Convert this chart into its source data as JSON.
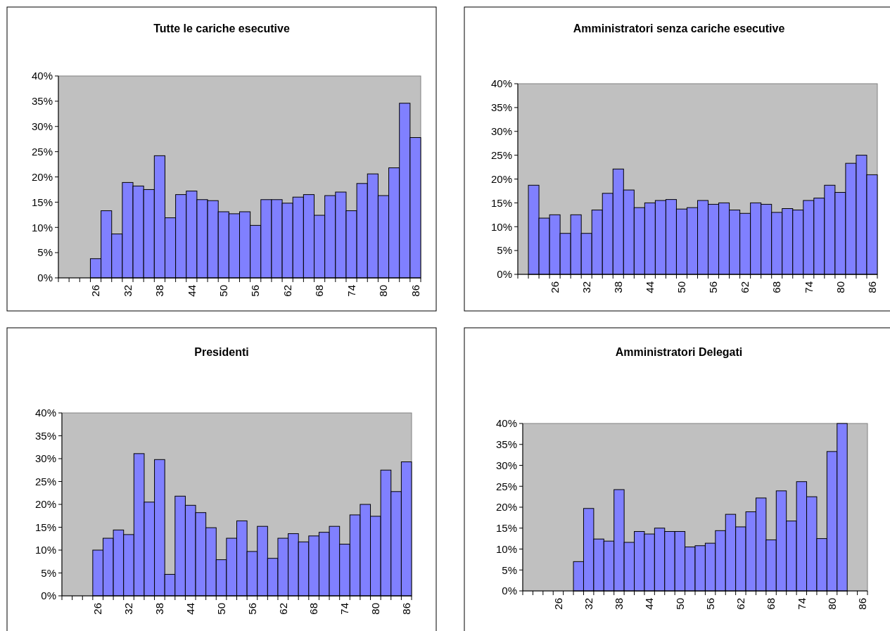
{
  "chart_data": [
    {
      "type": "bar",
      "title": "Tutte le cariche esecutive",
      "categories": [
        null,
        null,
        null,
        "26",
        null,
        null,
        "32",
        null,
        null,
        "38",
        null,
        null,
        "44",
        null,
        null,
        "50",
        null,
        null,
        "56",
        null,
        null,
        "62",
        null,
        null,
        "68",
        null,
        null,
        "74",
        null,
        null,
        "80",
        null,
        null,
        "86"
      ],
      "values": [
        null,
        null,
        null,
        3.8,
        13.3,
        8.7,
        18.9,
        18.2,
        17.5,
        24.2,
        11.9,
        16.5,
        17.2,
        15.5,
        15.3,
        13.1,
        12.7,
        13.1,
        10.4,
        15.5,
        15.5,
        14.8,
        16,
        16.5,
        12.4,
        16.3,
        17,
        13.3,
        18.7,
        20.6,
        16.3,
        21.8,
        34.6,
        27.8
      ],
      "color": "#8080ff",
      "ylim": [
        0,
        40
      ],
      "yticks": [
        {
          "value": 0,
          "label": "0%"
        },
        {
          "value": 5,
          "label": "5%"
        },
        {
          "value": 10,
          "label": "10%"
        },
        {
          "value": 15,
          "label": "15%"
        },
        {
          "value": 20,
          "label": "20%"
        },
        {
          "value": 25,
          "label": "25%"
        },
        {
          "value": 30,
          "label": "30%"
        },
        {
          "value": 35,
          "label": "35%"
        },
        {
          "value": 40,
          "label": "40%"
        }
      ],
      "grid": false
    },
    {
      "type": "bar",
      "title": "Amministratori senza cariche esecutive",
      "categories": [
        null,
        null,
        null,
        "26",
        null,
        null,
        "32",
        null,
        null,
        "38",
        null,
        null,
        "44",
        null,
        null,
        "50",
        null,
        null,
        "56",
        null,
        null,
        "62",
        null,
        null,
        "68",
        null,
        null,
        "74",
        null,
        null,
        "80",
        null,
        null,
        "86"
      ],
      "values": [
        null,
        18.7,
        11.8,
        12.5,
        8.6,
        12.5,
        8.6,
        13.5,
        17,
        22.1,
        17.7,
        14,
        15,
        15.5,
        15.7,
        13.7,
        14,
        15.5,
        14.7,
        15,
        13.5,
        12.8,
        15,
        14.7,
        13,
        13.8,
        13.5,
        15.5,
        16,
        18.7,
        17.2,
        23.3,
        25,
        20.9
      ],
      "color": "#8080ff",
      "ylim": [
        0,
        40
      ],
      "yticks": [
        {
          "value": 0,
          "label": "0%"
        },
        {
          "value": 5,
          "label": "5%"
        },
        {
          "value": 10,
          "label": "10%"
        },
        {
          "value": 15,
          "label": "15%"
        },
        {
          "value": 20,
          "label": "20%"
        },
        {
          "value": 25,
          "label": "25%"
        },
        {
          "value": 30,
          "label": "30%"
        },
        {
          "value": 35,
          "label": "35%"
        },
        {
          "value": 40,
          "label": "40%"
        }
      ],
      "grid": false
    },
    {
      "type": "bar",
      "title": "Presidenti",
      "categories": [
        null,
        null,
        null,
        "26",
        null,
        null,
        "32",
        null,
        null,
        "38",
        null,
        null,
        "44",
        null,
        null,
        "50",
        null,
        null,
        "56",
        null,
        null,
        "62",
        null,
        null,
        "68",
        null,
        null,
        "74",
        null,
        null,
        "80",
        null,
        null,
        "86"
      ],
      "values": [
        null,
        null,
        null,
        10,
        12.6,
        14.4,
        13.4,
        31.1,
        20.5,
        29.8,
        4.7,
        21.8,
        19.8,
        18.2,
        14.9,
        7.9,
        12.6,
        16.4,
        9.7,
        15.2,
        8.2,
        12.6,
        13.6,
        11.8,
        13.1,
        13.9,
        15.2,
        11.3,
        17.7,
        20,
        17.4,
        27.5,
        22.8,
        29.3
      ],
      "color": "#8080ff",
      "ylim": [
        0,
        40
      ],
      "yticks": [
        {
          "value": 0,
          "label": "0%"
        },
        {
          "value": 5,
          "label": "5%"
        },
        {
          "value": 10,
          "label": "10%"
        },
        {
          "value": 15,
          "label": "15%"
        },
        {
          "value": 20,
          "label": "20%"
        },
        {
          "value": 25,
          "label": "25%"
        },
        {
          "value": 30,
          "label": "30%"
        },
        {
          "value": 35,
          "label": "35%"
        },
        {
          "value": 40,
          "label": "40%"
        }
      ],
      "grid": false
    },
    {
      "type": "bar",
      "title": "Amministratori Delegati",
      "categories": [
        null,
        null,
        null,
        "26",
        null,
        null,
        "32",
        null,
        null,
        "38",
        null,
        null,
        "44",
        null,
        null,
        "50",
        null,
        null,
        "56",
        null,
        null,
        "62",
        null,
        null,
        "68",
        null,
        null,
        "74",
        null,
        null,
        "80",
        null,
        null,
        "86"
      ],
      "values": [
        null,
        null,
        null,
        null,
        null,
        7,
        19.7,
        12.4,
        11.9,
        24.2,
        11.6,
        14.2,
        13.6,
        15,
        14.2,
        14.2,
        10.5,
        10.8,
        11.4,
        14.4,
        18.3,
        15.3,
        18.9,
        22.2,
        12.2,
        23.9,
        16.7,
        26.1,
        22.5,
        12.5,
        33.3,
        40,
        null,
        null
      ],
      "color": "#8080ff",
      "ylim": [
        0,
        40
      ],
      "yticks": [
        {
          "value": 0,
          "label": "0%"
        },
        {
          "value": 5,
          "label": "5%"
        },
        {
          "value": 10,
          "label": "10%"
        },
        {
          "value": 15,
          "label": "15%"
        },
        {
          "value": 20,
          "label": "20%"
        },
        {
          "value": 25,
          "label": "25%"
        },
        {
          "value": 30,
          "label": "30%"
        },
        {
          "value": 35,
          "label": "35%"
        },
        {
          "value": 40,
          "label": "40%"
        }
      ],
      "grid": false
    }
  ]
}
